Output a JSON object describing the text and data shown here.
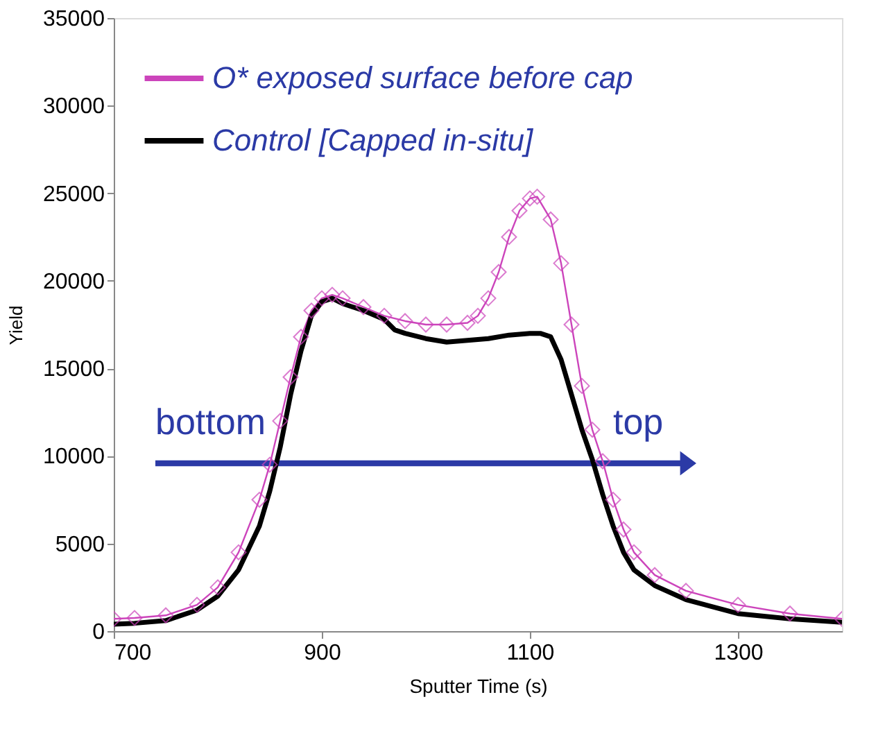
{
  "chart_data": {
    "type": "line",
    "xlabel": "Sputter Time (s)",
    "ylabel": "Yield",
    "xlim": [
      700,
      1400
    ],
    "xticks": [
      700,
      900,
      1100,
      1300
    ],
    "ylim": [
      0,
      35000
    ],
    "yticks": [
      0,
      5000,
      10000,
      15000,
      20000,
      25000,
      30000,
      35000
    ],
    "grid": false,
    "legend": "top left",
    "annotations": [
      "bottom",
      "top"
    ],
    "series": [
      {
        "name": "O* exposed surface before cap",
        "color": "#cc44bb",
        "marker": "diamond",
        "x": [
          700,
          720,
          750,
          780,
          800,
          820,
          840,
          850,
          860,
          870,
          880,
          890,
          900,
          910,
          920,
          940,
          960,
          980,
          1000,
          1020,
          1040,
          1050,
          1060,
          1070,
          1080,
          1090,
          1100,
          1107,
          1120,
          1130,
          1140,
          1150,
          1160,
          1170,
          1180,
          1190,
          1200,
          1220,
          1250,
          1300,
          1350,
          1400
        ],
        "values": [
          700,
          750,
          900,
          1500,
          2500,
          4500,
          7500,
          9500,
          12000,
          14500,
          16800,
          18300,
          19000,
          19200,
          19000,
          18500,
          18000,
          17700,
          17500,
          17500,
          17600,
          18000,
          19000,
          20500,
          22500,
          24000,
          24700,
          24800,
          23500,
          21000,
          17500,
          14000,
          11500,
          9700,
          7500,
          5800,
          4500,
          3200,
          2300,
          1500,
          1000,
          700
        ]
      },
      {
        "name": "Control [Capped in-situ]",
        "color": "#000000",
        "marker": "none",
        "x": [
          700,
          720,
          750,
          780,
          800,
          820,
          840,
          850,
          860,
          870,
          880,
          890,
          900,
          910,
          920,
          940,
          960,
          970,
          980,
          1000,
          1020,
          1040,
          1060,
          1080,
          1100,
          1110,
          1120,
          1130,
          1140,
          1150,
          1160,
          1170,
          1180,
          1190,
          1200,
          1220,
          1250,
          1300,
          1350,
          1400
        ],
        "values": [
          400,
          450,
          600,
          1200,
          2000,
          3500,
          6000,
          8000,
          10500,
          13500,
          16000,
          18000,
          18800,
          19000,
          18700,
          18300,
          17800,
          17200,
          17000,
          16700,
          16500,
          16600,
          16700,
          16900,
          17000,
          17000,
          16800,
          15500,
          13500,
          11500,
          9800,
          7800,
          6000,
          4500,
          3500,
          2600,
          1800,
          1000,
          700,
          500
        ]
      }
    ]
  }
}
